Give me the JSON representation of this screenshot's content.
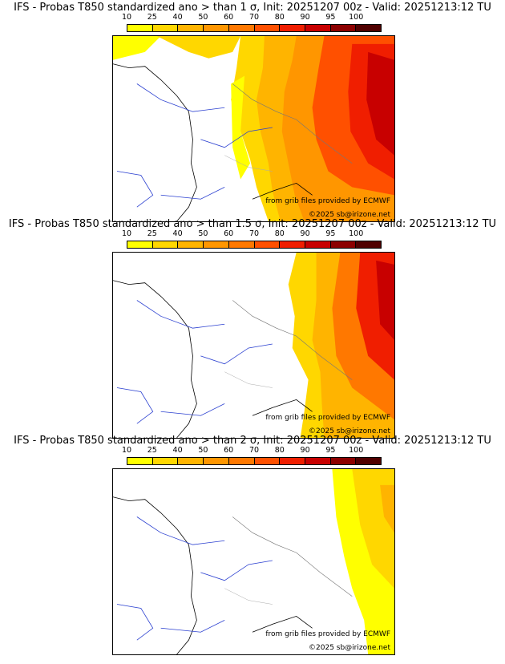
{
  "legend": {
    "ticks": [
      "10",
      "25",
      "40",
      "50",
      "60",
      "70",
      "80",
      "90",
      "95",
      "100"
    ],
    "colors": [
      "#ffff00",
      "#ffd700",
      "#ffb400",
      "#ff9600",
      "#ff7800",
      "#ff5000",
      "#f01e00",
      "#c80000",
      "#8c0000",
      "#500000"
    ]
  },
  "panels": [
    {
      "title": "IFS - Probas T850  standardized ano > than 1 σ, Init: 20251207 00z - Valid: 20251213:12 TU",
      "credit1": "from grib files provided by ECMWF",
      "credit2": "©2025 sb@irizone.net"
    },
    {
      "title": "IFS - Probas T850  standardized ano > than 1.5 σ, Init: 20251207 00z - Valid: 20251213:12 TU",
      "credit1": "from grib files provided by ECMWF",
      "credit2": "©2025 sb@irizone.net"
    },
    {
      "title": "IFS - Probas T850  standardized ano > than 2 σ, Init: 20251207 00z - Valid: 20251213:12 TU",
      "credit1": "from grib files provided by ECMWF",
      "credit2": "©2025 sb@irizone.net"
    }
  ]
}
